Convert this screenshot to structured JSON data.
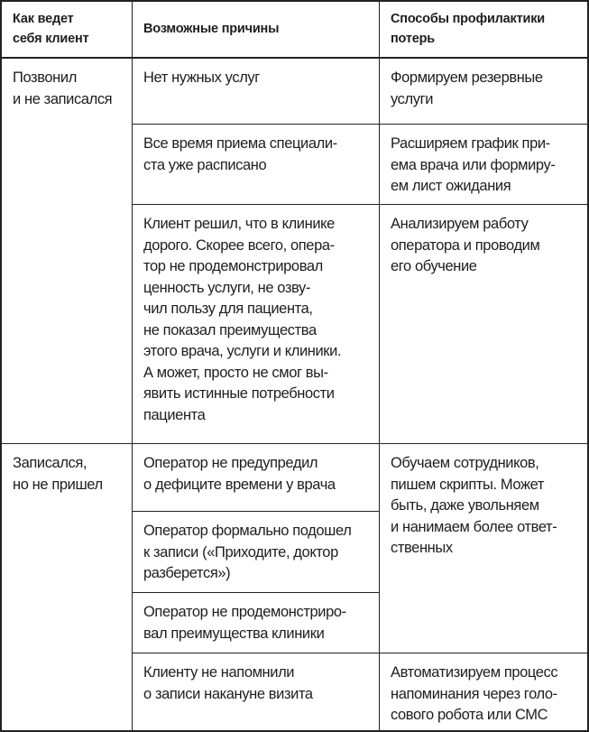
{
  "header": {
    "col1": "Как ведет\nсебя клиент",
    "col2": "Возможные причины",
    "col3": "Способы профилактики\nпотерь"
  },
  "groups": [
    {
      "behavior": "Позвонил\nи не записался",
      "causes": [
        "Нет нужных услуг",
        "Все время приема специали-\nста уже расписано",
        "Клиент решил, что в клинике\nдорого. Скорее всего, опера-\nтор не продемонстрировал\nценность услуги, не озву-\nчил пользу для пациента,\nне показал преимущества\nэтого врача, услуги и клиники.\nА может, просто не смог вы-\nявить истинные потребности\nпациента"
      ],
      "prevention": [
        "Формируем резервные\nуслуги",
        "Расширяем график при-\nема врача или формиру-\nем лист ожидания",
        "Анализируем работу\nоператора и проводим\nего обучение"
      ]
    },
    {
      "behavior": "Записался,\nно не пришел",
      "causes": [
        "Оператор не предупредил\nо дефиците времени у врача",
        "Оператор формально подошел\nк записи («Приходите, доктор\nразберется»)",
        "Оператор не продемонстриро-\nвал преимущества клиники",
        "Клиенту не напомнили\nо записи накануне визита"
      ],
      "prevention": [
        "Обучаем сотрудников,\nпишем скрипты. Может\nбыть, даже увольняем\nи нанимаем более ответ-\nственных",
        "Автоматизируем процесс\nнапоминания через голо-\nсового робота или СМС"
      ]
    }
  ]
}
